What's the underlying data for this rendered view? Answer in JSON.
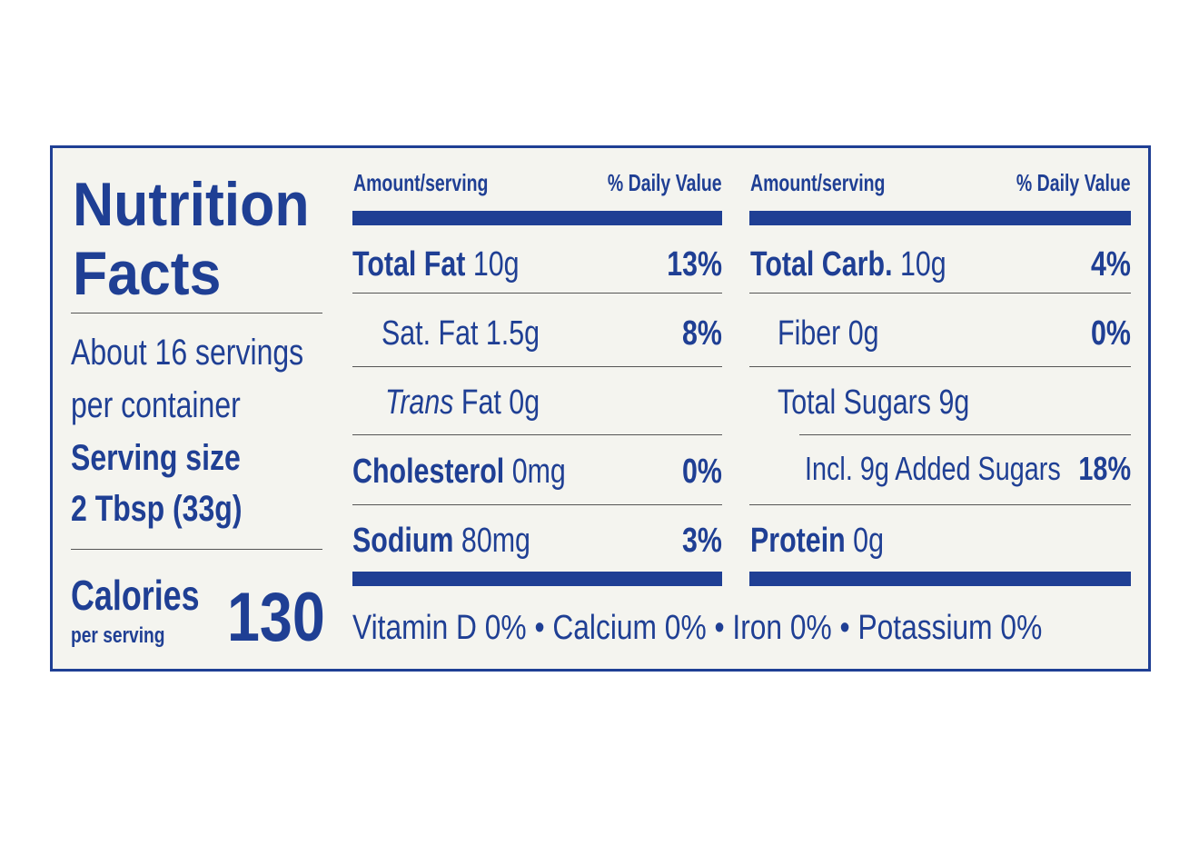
{
  "title_line1": "Nutrition",
  "title_line2": "Facts",
  "servings_line1": "About 16 servings",
  "servings_line2": "per container",
  "serving_size_label": "Serving size",
  "serving_size_value": "2 Tbsp (33g)",
  "calories_label": "Calories",
  "calories_sub": "per serving",
  "calories_value": "130",
  "header_amount": "Amount/serving",
  "header_dv": "% Daily Value",
  "left_rows": [
    {
      "name": "Total Fat",
      "amount": "10g",
      "dv": "13%"
    },
    {
      "name": "Sat. Fat",
      "amount": "1.5g",
      "dv": "8%"
    },
    {
      "name": "Trans",
      "amount": "Fat 0g",
      "dv": ""
    },
    {
      "name": "Cholesterol",
      "amount": "0mg",
      "dv": "0%"
    },
    {
      "name": "Sodium",
      "amount": "80mg",
      "dv": "3%"
    }
  ],
  "right_rows": [
    {
      "name": "Total Carb.",
      "amount": "10g",
      "dv": "4%"
    },
    {
      "name": "Fiber",
      "amount": "0g",
      "dv": "0%"
    },
    {
      "name": "Total Sugars",
      "amount": "9g",
      "dv": ""
    },
    {
      "name": "Incl. 9g Added Sugars",
      "amount": "",
      "dv": "18%"
    },
    {
      "name": "Protein",
      "amount": "0g",
      "dv": ""
    }
  ],
  "vitamins": "Vitamin D 0% • Calcium 0% • Iron 0% • Potassium 0%",
  "color_ink": "#1f3f94",
  "color_paper": "#f4f4ef"
}
